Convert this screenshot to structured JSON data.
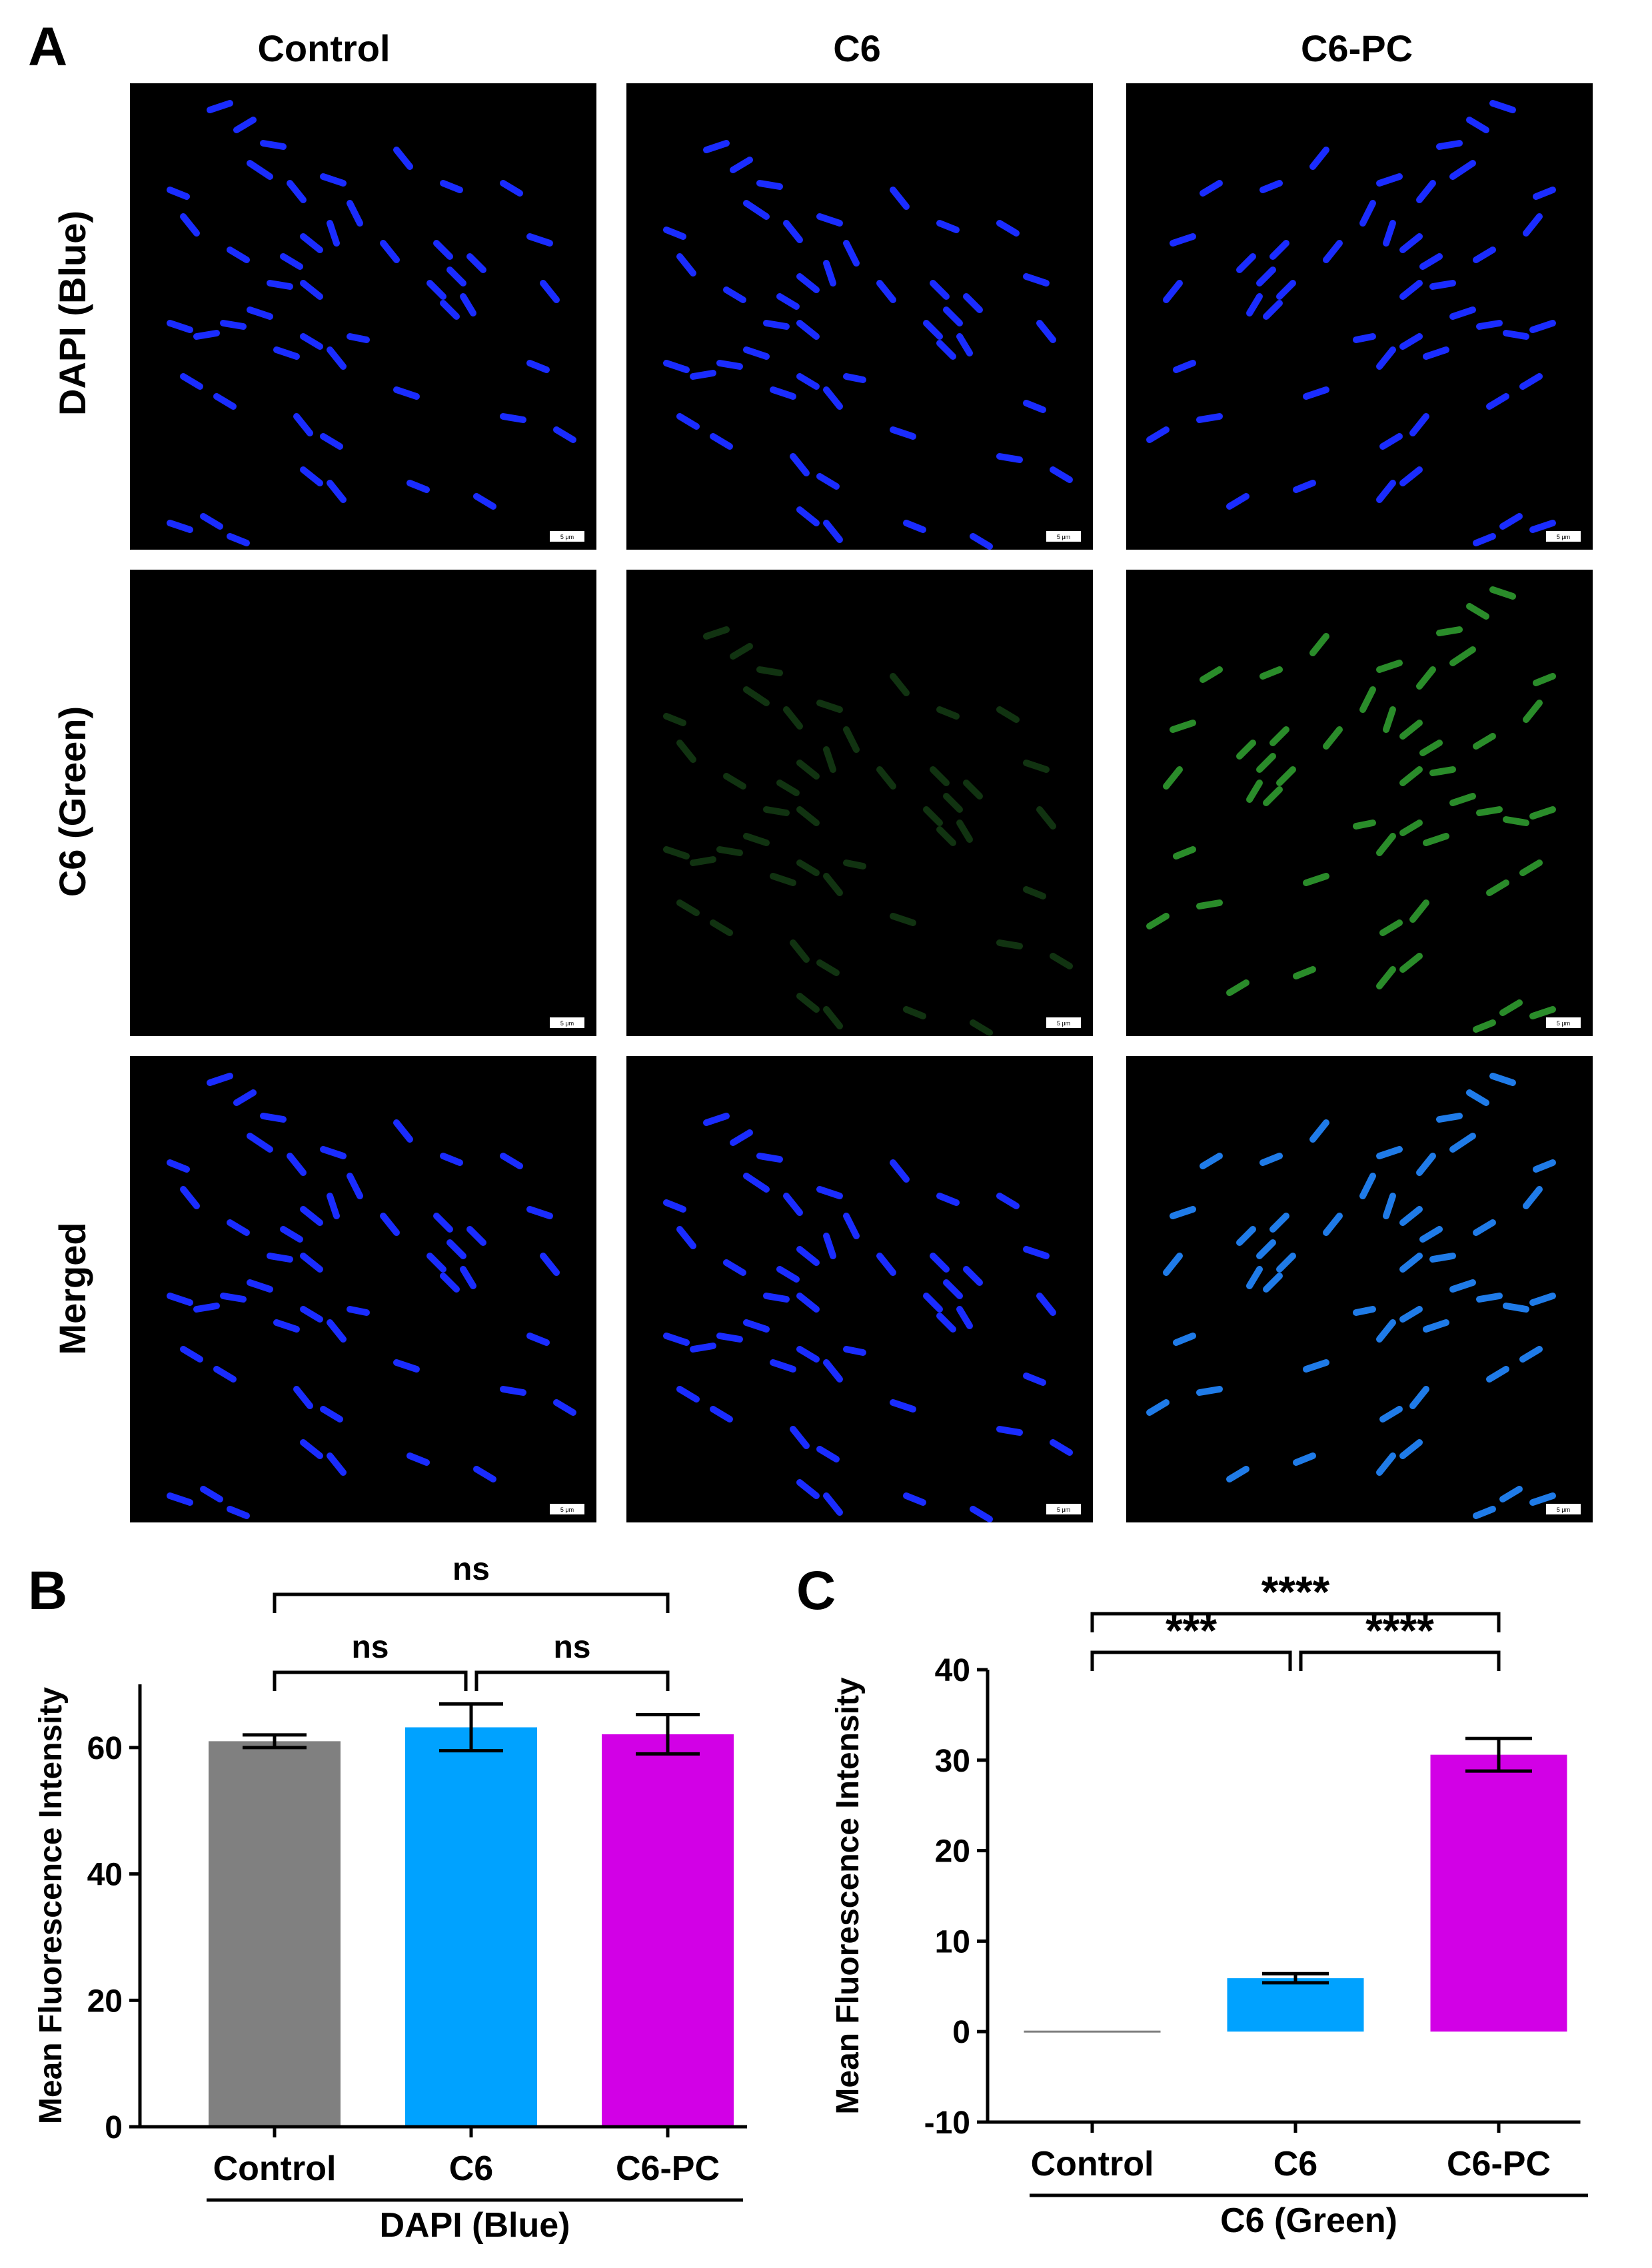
{
  "panel_a": {
    "letter": "A",
    "column_labels": [
      "Control",
      "C6",
      "C6-PC"
    ],
    "row_labels": [
      "DAPI (Blue)",
      "C6 (Green)",
      "Merged"
    ],
    "scale_bar_label": "5 μm"
  },
  "chart_data": [
    {
      "panel_letter": "B",
      "type": "bar",
      "categories": [
        "Control",
        "C6",
        "C6-PC"
      ],
      "values": [
        61,
        63.2,
        62.1
      ],
      "errors": [
        1.0,
        3.7,
        3.1
      ],
      "colors": [
        "#808080",
        "#00A2FF",
        "#D200E6"
      ],
      "ylabel": "Mean Fluorescence Intensity",
      "group_label": "DAPI (Blue)",
      "ylim": [
        0,
        70
      ],
      "yticks": [
        0,
        20,
        40,
        60
      ],
      "significance": [
        {
          "from": 0,
          "to": 1,
          "label": "ns"
        },
        {
          "from": 1,
          "to": 2,
          "label": "ns"
        },
        {
          "from": 0,
          "to": 2,
          "label": "ns"
        }
      ]
    },
    {
      "panel_letter": "C",
      "type": "bar",
      "categories": [
        "Control",
        "C6",
        "C6-PC"
      ],
      "values": [
        0,
        5.9,
        30.6
      ],
      "errors": [
        0,
        0.5,
        1.8
      ],
      "colors": [
        "#808080",
        "#00A2FF",
        "#D200E6"
      ],
      "ylabel": "Mean Fluorescence Intensity",
      "group_label": "C6 (Green)",
      "ylim": [
        -10,
        40
      ],
      "yticks": [
        -10,
        0,
        10,
        20,
        30,
        40
      ],
      "significance": [
        {
          "from": 0,
          "to": 1,
          "label": "***"
        },
        {
          "from": 1,
          "to": 2,
          "label": "****"
        },
        {
          "from": 0,
          "to": 2,
          "label": "****"
        }
      ]
    }
  ]
}
